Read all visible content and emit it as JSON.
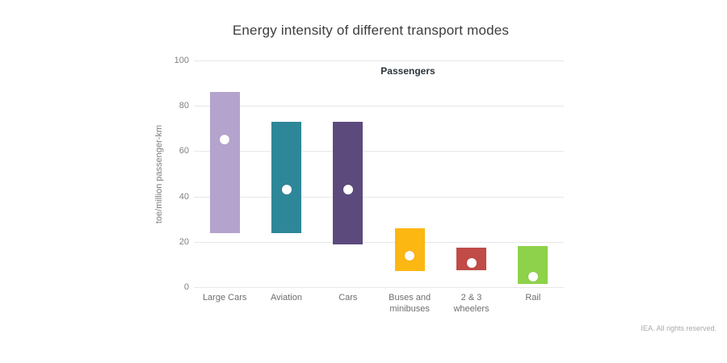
{
  "page": {
    "footer": "IEA. All rights reserved."
  },
  "chart_data": {
    "type": "bar",
    "subtype": "floating-range-columns-with-average-marker",
    "title": "Energy intensity of different transport modes",
    "group_label": "Passengers",
    "xlabel": "",
    "ylabel": "toe/million passenger-km",
    "ylim": [
      0,
      100
    ],
    "yticks": [
      0,
      20,
      40,
      60,
      80,
      100
    ],
    "grid": "horizontal",
    "legend_position": "none",
    "marker": {
      "meaning": "average value",
      "shape": "white-circle"
    },
    "categories": [
      "Large Cars",
      "Aviation",
      "Cars",
      "Buses and minibuses",
      "2 & 3 wheelers",
      "Rail"
    ],
    "bars": [
      {
        "label": "Large Cars",
        "label_lines": [
          "Large Cars"
        ],
        "min": 24,
        "max": 86,
        "avg": 65,
        "color": "#b3a3cd"
      },
      {
        "label": "Aviation",
        "label_lines": [
          "Aviation"
        ],
        "min": 24,
        "max": 73,
        "avg": 43,
        "color": "#2e8798"
      },
      {
        "label": "Cars",
        "label_lines": [
          "Cars"
        ],
        "min": 19,
        "max": 73,
        "avg": 43,
        "color": "#5c4a7d"
      },
      {
        "label": "Buses and minibuses",
        "label_lines": [
          "Buses and",
          "minibuses"
        ],
        "min": 7,
        "max": 26,
        "avg": 14,
        "color": "#fdb713"
      },
      {
        "label": "2 & 3 wheelers",
        "label_lines": [
          "2 & 3",
          "wheelers"
        ],
        "min": 7.5,
        "max": 17.5,
        "avg": 10.5,
        "color": "#c14b47"
      },
      {
        "label": "Rail",
        "label_lines": [
          "Rail"
        ],
        "min": 1.5,
        "max": 18,
        "avg": 4.5,
        "color": "#8dd24a"
      }
    ]
  }
}
